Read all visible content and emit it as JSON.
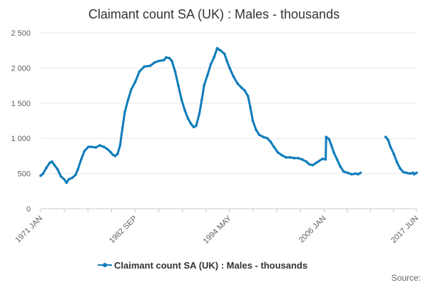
{
  "chart_data": {
    "type": "line",
    "title": "Claimant count SA (UK) : Males - thousands",
    "source_label": "Source:",
    "legend_placement": "bottom",
    "grid": true,
    "series_color": "#0F7CBA",
    "ylim": [
      0,
      2500
    ],
    "y_ticks": [
      0,
      500,
      1000,
      1500,
      2000,
      2500
    ],
    "y_tick_labels": [
      "0",
      "500",
      "1 000",
      "1 500",
      "2 000",
      "2 500"
    ],
    "x_tick_labels": [
      {
        "label": "1971 JAN",
        "t": 1971.0
      },
      {
        "label": "1982 SEP",
        "t": 1982.67
      },
      {
        "label": "1994 MAY",
        "t": 1994.33
      },
      {
        "label": "2006 JAN",
        "t": 2006.0
      },
      {
        "label": "2017 JUN",
        "t": 2017.42
      }
    ],
    "series": [
      {
        "name": "Claimant count SA (UK) : Males - thousands",
        "segments": [
          [
            [
              1971.0,
              470
            ],
            [
              1971.3,
              500
            ],
            [
              1971.7,
              580
            ],
            [
              1972.1,
              650
            ],
            [
              1972.4,
              670
            ],
            [
              1972.7,
              620
            ],
            [
              1973.1,
              560
            ],
            [
              1973.5,
              460
            ],
            [
              1973.9,
              420
            ],
            [
              1974.2,
              370
            ],
            [
              1974.5,
              420
            ],
            [
              1974.9,
              440
            ],
            [
              1975.3,
              480
            ],
            [
              1975.6,
              560
            ],
            [
              1976.0,
              700
            ],
            [
              1976.4,
              820
            ],
            [
              1976.9,
              880
            ],
            [
              1977.3,
              880
            ],
            [
              1977.8,
              870
            ],
            [
              1978.3,
              900
            ],
            [
              1978.8,
              880
            ],
            [
              1979.2,
              850
            ],
            [
              1979.6,
              810
            ],
            [
              1979.9,
              770
            ],
            [
              1980.2,
              750
            ],
            [
              1980.5,
              780
            ],
            [
              1980.8,
              900
            ],
            [
              1981.1,
              1150
            ],
            [
              1981.4,
              1380
            ],
            [
              1981.8,
              1550
            ],
            [
              1982.2,
              1700
            ],
            [
              1982.67,
              1800
            ],
            [
              1983.2,
              1950
            ],
            [
              1983.8,
              2020
            ],
            [
              1984.5,
              2030
            ],
            [
              1985.1,
              2080
            ],
            [
              1985.6,
              2100
            ],
            [
              1986.2,
              2110
            ],
            [
              1986.5,
              2150
            ],
            [
              1986.9,
              2140
            ],
            [
              1987.2,
              2100
            ],
            [
              1987.6,
              1950
            ],
            [
              1988.0,
              1750
            ],
            [
              1988.4,
              1550
            ],
            [
              1988.8,
              1400
            ],
            [
              1989.2,
              1280
            ],
            [
              1989.6,
              1200
            ],
            [
              1989.9,
              1160
            ],
            [
              1990.2,
              1180
            ],
            [
              1990.6,
              1350
            ],
            [
              1990.9,
              1550
            ],
            [
              1991.2,
              1760
            ],
            [
              1991.6,
              1900
            ],
            [
              1992.0,
              2050
            ],
            [
              1992.4,
              2150
            ],
            [
              1992.8,
              2280
            ],
            [
              1993.2,
              2250
            ],
            [
              1993.7,
              2200
            ],
            [
              1994.0,
              2100
            ],
            [
              1994.33,
              2000
            ],
            [
              1994.8,
              1880
            ],
            [
              1995.3,
              1780
            ],
            [
              1995.8,
              1720
            ],
            [
              1996.2,
              1680
            ],
            [
              1996.6,
              1600
            ],
            [
              1996.9,
              1440
            ],
            [
              1997.2,
              1250
            ],
            [
              1997.6,
              1120
            ],
            [
              1998.0,
              1050
            ],
            [
              1998.5,
              1020
            ],
            [
              1999.0,
              1000
            ],
            [
              1999.4,
              950
            ],
            [
              1999.8,
              880
            ],
            [
              2000.3,
              800
            ],
            [
              2000.8,
              760
            ],
            [
              2001.3,
              730
            ],
            [
              2001.8,
              730
            ],
            [
              2002.3,
              720
            ],
            [
              2002.8,
              720
            ],
            [
              2003.3,
              700
            ],
            [
              2003.8,
              670
            ],
            [
              2004.2,
              630
            ],
            [
              2004.6,
              620
            ],
            [
              2005.0,
              650
            ],
            [
              2005.4,
              680
            ],
            [
              2005.8,
              710
            ],
            [
              2006.2,
              700
            ],
            [
              2006.25,
              1020
            ],
            [
              2006.6,
              990
            ],
            [
              2006.9,
              900
            ],
            [
              2007.2,
              800
            ],
            [
              2007.6,
              700
            ],
            [
              2008.0,
              600
            ],
            [
              2008.4,
              530
            ],
            [
              2008.9,
              510
            ],
            [
              2009.4,
              490
            ],
            [
              2009.9,
              500
            ],
            [
              2010.2,
              490
            ],
            [
              2010.5,
              510
            ]
          ],
          [
            [
              2013.6,
              1020
            ],
            [
              2013.9,
              980
            ],
            [
              2014.2,
              880
            ],
            [
              2014.6,
              780
            ],
            [
              2015.0,
              660
            ],
            [
              2015.4,
              570
            ],
            [
              2015.8,
              520
            ],
            [
              2016.2,
              510
            ],
            [
              2016.6,
              500
            ],
            [
              2017.0,
              510
            ],
            [
              2017.1,
              490
            ],
            [
              2017.42,
              510
            ]
          ]
        ]
      }
    ]
  }
}
